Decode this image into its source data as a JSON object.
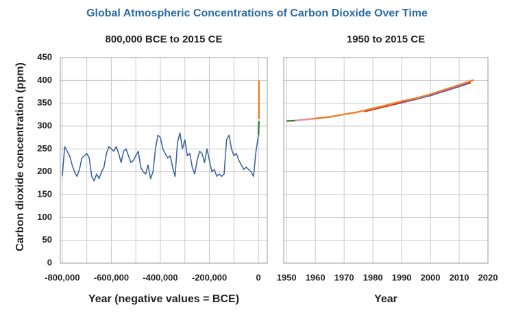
{
  "title": "Global Atmospheric Concentrations of Carbon Dioxide Over Time",
  "chart_data": [
    {
      "type": "line",
      "title": "800,000 BCE to 2015 CE",
      "xlabel": "Year (negative values = BCE)",
      "ylabel": "Carbon dioxide concentration (ppm)",
      "xlim": [
        -808000,
        36000
      ],
      "ylim": [
        0,
        450
      ],
      "xticks": [
        {
          "value": -800000,
          "label": "-800,000"
        },
        {
          "value": -600000,
          "label": "-600,000"
        },
        {
          "value": -400000,
          "label": "-400,000"
        },
        {
          "value": -200000,
          "label": "-200,000"
        },
        0
      ],
      "xgrid": [
        -700000,
        -500000,
        -300000,
        -100000
      ],
      "yticks": [
        0,
        50,
        100,
        150,
        200,
        250,
        300,
        350,
        400,
        450
      ],
      "show_ytick_labels": true,
      "grid": true,
      "series": [
        {
          "color": "#3b64a0",
          "x": [
            -800000,
            -790000,
            -780000,
            -770000,
            -760000,
            -750000,
            -740000,
            -730000,
            -720000,
            -710000,
            -700000,
            -690000,
            -680000,
            -670000,
            -660000,
            -650000,
            -640000,
            -630000,
            -620000,
            -610000,
            -600000,
            -590000,
            -580000,
            -570000,
            -560000,
            -550000,
            -540000,
            -530000,
            -520000,
            -510000,
            -500000,
            -490000,
            -480000,
            -470000,
            -460000,
            -450000,
            -440000,
            -430000,
            -420000,
            -410000,
            -400000,
            -390000,
            -380000,
            -370000,
            -360000,
            -350000,
            -340000,
            -330000,
            -320000,
            -310000,
            -300000,
            -290000,
            -280000,
            -270000,
            -260000,
            -250000,
            -240000,
            -230000,
            -220000,
            -210000,
            -200000,
            -190000,
            -180000,
            -170000,
            -160000,
            -150000,
            -140000,
            -130000,
            -120000,
            -110000,
            -100000,
            -90000,
            -80000,
            -70000,
            -60000,
            -50000,
            -40000,
            -30000,
            -20000,
            -10000,
            0
          ],
          "values": [
            190,
            255,
            245,
            235,
            215,
            200,
            190,
            205,
            230,
            235,
            240,
            230,
            190,
            180,
            195,
            185,
            200,
            210,
            240,
            255,
            250,
            245,
            255,
            240,
            220,
            245,
            250,
            235,
            220,
            225,
            235,
            245,
            210,
            200,
            195,
            215,
            185,
            200,
            250,
            280,
            275,
            250,
            240,
            230,
            235,
            210,
            190,
            265,
            285,
            250,
            270,
            235,
            240,
            210,
            195,
            225,
            245,
            240,
            220,
            250,
            225,
            200,
            205,
            190,
            195,
            190,
            195,
            270,
            280,
            250,
            235,
            240,
            225,
            215,
            205,
            210,
            205,
            200,
            190,
            245,
            280
          ]
        },
        {
          "color": "#2e7d32",
          "x": [
            0,
            1950
          ],
          "values": [
            280,
            311
          ]
        },
        {
          "color": "#f57c20",
          "x": [
            1958,
            2015
          ],
          "values": [
            315,
            400
          ]
        }
      ]
    },
    {
      "type": "line",
      "title": "1950 to 2015 CE",
      "xlabel": "Year",
      "xlim": [
        1949,
        2020
      ],
      "ylim": [
        0,
        450
      ],
      "xticks": [
        1950,
        1960,
        1970,
        1980,
        1990,
        2000,
        2010,
        2020
      ],
      "yticks": [
        0,
        50,
        100,
        150,
        200,
        250,
        300,
        350,
        400,
        450
      ],
      "show_ytick_labels": false,
      "grid": true,
      "series": [
        {
          "color": "#2e7d32",
          "x": [
            1950,
            1954
          ],
          "values": [
            311,
            312.5
          ]
        },
        {
          "color": "#f08a9a",
          "x": [
            1953,
            1962
          ],
          "values": [
            312,
            318
          ]
        },
        {
          "color": "#c0392b",
          "x": [
            1977,
            1985,
            1995,
            2005,
            2014
          ],
          "values": [
            332,
            344,
            359,
            377,
            395
          ]
        },
        {
          "color": "#5b5fc7",
          "x": [
            1990,
            2000,
            2010,
            2013
          ],
          "values": [
            352,
            367,
            387,
            393
          ]
        },
        {
          "color": "#f57c20",
          "x": [
            1959,
            1965,
            1970,
            1975,
            1980,
            1985,
            1990,
            1995,
            2000,
            2005,
            2010,
            2015
          ],
          "values": [
            316,
            320,
            325.7,
            331,
            338.7,
            346,
            354.4,
            361,
            369.6,
            379.8,
            389.9,
            400.8
          ]
        }
      ]
    }
  ]
}
